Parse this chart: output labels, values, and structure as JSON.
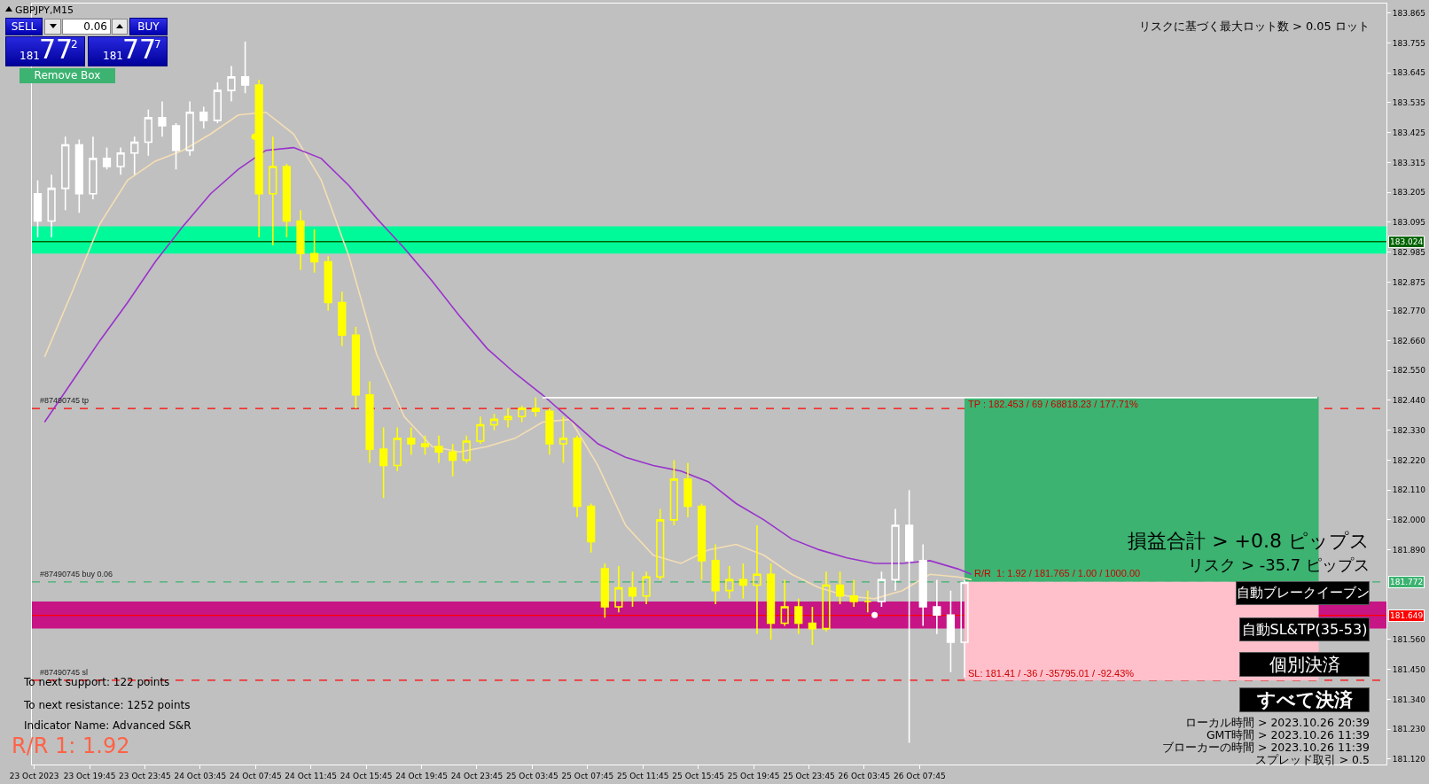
{
  "chart_data": {
    "type": "candlestick",
    "title": "GBPJPY,M15",
    "xlim": [
      "2023-10-23T15:35",
      "2023-10-27T17:30"
    ],
    "xticks": [
      {
        "value": "2023-10-23T15:45",
        "label": "23 Oct 2023"
      },
      {
        "value": "2023-10-23T19:45",
        "label": "23 Oct 19:45"
      },
      {
        "value": "2023-10-23T23:45",
        "label": "23 Oct 23:45"
      },
      {
        "value": "2023-10-24T03:45",
        "label": "24 Oct 03:45"
      },
      {
        "value": "2023-10-24T07:45",
        "label": "24 Oct 07:45"
      },
      {
        "value": "2023-10-24T11:45",
        "label": "24 Oct 11:45"
      },
      {
        "value": "2023-10-24T15:45",
        "label": "24 Oct 15:45"
      },
      {
        "value": "2023-10-24T19:45",
        "label": "24 Oct 19:45"
      },
      {
        "value": "2023-10-24T23:45",
        "label": "24 Oct 23:45"
      },
      {
        "value": "2023-10-25T03:45",
        "label": "25 Oct 03:45"
      },
      {
        "value": "2023-10-25T07:45",
        "label": "25 Oct 07:45"
      },
      {
        "value": "2023-10-25T11:45",
        "label": "25 Oct 11:45"
      },
      {
        "value": "2023-10-25T15:45",
        "label": "25 Oct 15:45"
      },
      {
        "value": "2023-10-25T19:45",
        "label": "25 Oct 19:45"
      },
      {
        "value": "2023-10-25T23:45",
        "label": "25 Oct 23:45"
      },
      {
        "value": "2023-10-26T03:45",
        "label": "26 Oct 03:45"
      },
      {
        "value": "2023-10-26T07:45",
        "label": "26 Oct 07:45"
      }
    ],
    "ylim": [
      181.1,
      183.9
    ],
    "yticks": [
      183.865,
      183.755,
      183.645,
      183.535,
      183.425,
      183.315,
      183.205,
      183.095,
      182.985,
      182.875,
      {
        "value": 182.77,
        "label": "182.770"
      },
      {
        "value": 182.66,
        "label": "182.660"
      },
      {
        "value": 182.55,
        "label": "182.550"
      },
      {
        "value": 182.44,
        "label": "182.440"
      },
      {
        "value": 182.33,
        "label": "182.330"
      },
      {
        "value": 182.22,
        "label": "182.220"
      },
      {
        "value": 182.11,
        "label": "182.110"
      },
      {
        "value": 182.0,
        "label": "182.000"
      },
      {
        "value": 181.89,
        "label": "181.890"
      },
      {
        "value": 181.56,
        "label": "181.560"
      },
      {
        "value": 181.45,
        "label": "181.450"
      },
      {
        "value": 181.34,
        "label": "181.340"
      },
      {
        "value": 181.23,
        "label": "181.230"
      },
      {
        "value": 181.12,
        "label": "181.120"
      }
    ],
    "series": [
      {
        "type": "line",
        "color": "#f5deb3",
        "x": [
          "2023-10-23T16:30",
          "2023-10-23T18:30",
          "2023-10-23T20:30",
          "2023-10-23T22:30",
          "2023-10-24T00:30",
          "2023-10-24T02:30",
          "2023-10-24T04:30",
          "2023-10-24T06:30",
          "2023-10-24T08:30",
          "2023-10-24T10:30",
          "2023-10-24T12:30",
          "2023-10-24T14:30",
          "2023-10-24T16:30",
          "2023-10-24T18:30",
          "2023-10-24T20:30",
          "2023-10-24T22:30",
          "2023-10-25T00:30",
          "2023-10-25T02:30",
          "2023-10-25T04:30",
          "2023-10-25T06:30",
          "2023-10-25T08:30",
          "2023-10-25T10:30",
          "2023-10-25T12:30",
          "2023-10-25T14:30",
          "2023-10-25T16:30",
          "2023-10-25T18:30",
          "2023-10-25T20:30",
          "2023-10-25T22:30",
          "2023-10-26T00:30",
          "2023-10-26T02:30",
          "2023-10-26T04:30",
          "2023-10-26T06:30",
          "2023-10-26T08:30",
          "2023-10-26T10:30",
          "2023-10-26T11:30"
        ],
        "values": [
          182.6,
          182.84,
          183.09,
          183.25,
          183.32,
          183.36,
          183.42,
          183.49,
          183.5,
          183.42,
          183.25,
          182.97,
          182.61,
          182.38,
          182.27,
          182.25,
          182.27,
          182.3,
          182.36,
          182.37,
          182.2,
          181.98,
          181.87,
          181.84,
          181.89,
          181.91,
          181.87,
          181.8,
          181.75,
          181.72,
          181.71,
          181.74,
          181.8,
          181.79,
          181.78
        ]
      },
      {
        "type": "line",
        "color": "#9932cc",
        "x": [
          "2023-10-23T16:30",
          "2023-10-23T18:30",
          "2023-10-23T20:30",
          "2023-10-23T22:30",
          "2023-10-24T00:30",
          "2023-10-24T02:30",
          "2023-10-24T04:30",
          "2023-10-24T06:30",
          "2023-10-24T08:30",
          "2023-10-24T10:30",
          "2023-10-24T12:30",
          "2023-10-24T14:30",
          "2023-10-24T16:30",
          "2023-10-24T18:30",
          "2023-10-24T20:30",
          "2023-10-24T22:30",
          "2023-10-25T00:30",
          "2023-10-25T02:30",
          "2023-10-25T04:30",
          "2023-10-25T06:30",
          "2023-10-25T08:30",
          "2023-10-25T10:30",
          "2023-10-25T12:30",
          "2023-10-25T14:30",
          "2023-10-25T16:30",
          "2023-10-25T18:30",
          "2023-10-25T20:30",
          "2023-10-25T22:30",
          "2023-10-26T00:30",
          "2023-10-26T02:30",
          "2023-10-26T04:30",
          "2023-10-26T06:30",
          "2023-10-26T08:30",
          "2023-10-26T10:30",
          "2023-10-26T11:30"
        ],
        "values": [
          182.36,
          182.51,
          182.66,
          182.8,
          182.95,
          183.08,
          183.2,
          183.29,
          183.36,
          183.37,
          183.33,
          183.23,
          183.11,
          183.0,
          182.88,
          182.75,
          182.63,
          182.54,
          182.46,
          182.37,
          182.28,
          182.23,
          182.2,
          182.18,
          182.14,
          182.06,
          182.0,
          181.93,
          181.89,
          181.86,
          181.84,
          181.84,
          181.85,
          181.82,
          181.8
        ]
      },
      {
        "type": "line",
        "color": "#ffffff",
        "x": [
          "2023-10-25T04:30",
          "2023-10-27T12:30"
        ],
        "values": [
          182.45,
          182.45
        ]
      },
      {
        "type": "scatter",
        "marker": "circle",
        "colors": [
          "#ffff00",
          "#ffffff"
        ],
        "x": [
          "2023-10-24T07:40",
          "2023-10-26T04:30"
        ],
        "values": [
          183.41,
          181.65
        ]
      },
      {
        "color": "#ffffff",
        "x": [
          "2023-10-23T16:00",
          "2023-10-23T17:00",
          "2023-10-23T18:00",
          "2023-10-23T19:00",
          "2023-10-23T20:00",
          "2023-10-23T21:00",
          "2023-10-23T22:00",
          "2023-10-23T23:00",
          "2023-10-24T00:00",
          "2023-10-24T01:00",
          "2023-10-24T02:00",
          "2023-10-24T03:00",
          "2023-10-24T04:00",
          "2023-10-24T05:00",
          "2023-10-24T06:00",
          "2023-10-24T07:00"
        ],
        "ohlc": [
          [
            183.2,
            183.25,
            183.04,
            183.1
          ],
          [
            183.1,
            183.27,
            183.04,
            183.22
          ],
          [
            183.22,
            183.41,
            183.14,
            183.38
          ],
          [
            183.38,
            183.4,
            183.13,
            183.2
          ],
          [
            183.2,
            183.41,
            183.18,
            183.33
          ],
          [
            183.33,
            183.37,
            183.29,
            183.3
          ],
          [
            183.3,
            183.37,
            183.27,
            183.35
          ],
          [
            183.35,
            183.41,
            183.27,
            183.39
          ],
          [
            183.39,
            183.51,
            183.34,
            183.48
          ],
          [
            183.48,
            183.54,
            183.41,
            183.45
          ],
          [
            183.45,
            183.46,
            183.29,
            183.36
          ],
          [
            183.36,
            183.54,
            183.34,
            183.5
          ],
          [
            183.5,
            183.52,
            183.44,
            183.47
          ],
          [
            183.47,
            183.61,
            183.46,
            183.58
          ],
          [
            183.58,
            183.67,
            183.54,
            183.63
          ],
          [
            183.63,
            183.76,
            183.57,
            183.6
          ]
        ]
      },
      {
        "color": "#ffff00",
        "x": [
          "2023-10-24T08:00",
          "2023-10-24T09:00",
          "2023-10-24T10:00",
          "2023-10-24T11:00",
          "2023-10-24T12:00",
          "2023-10-24T13:00",
          "2023-10-24T14:00",
          "2023-10-24T15:00",
          "2023-10-24T16:00",
          "2023-10-24T17:00",
          "2023-10-24T18:00",
          "2023-10-24T19:00",
          "2023-10-24T20:00",
          "2023-10-24T21:00",
          "2023-10-24T22:00",
          "2023-10-24T23:00",
          "2023-10-25T00:00",
          "2023-10-25T01:00",
          "2023-10-25T02:00",
          "2023-10-25T03:00",
          "2023-10-25T04:00",
          "2023-10-25T05:00",
          "2023-10-25T06:00",
          "2023-10-25T07:00",
          "2023-10-25T08:00",
          "2023-10-25T09:00",
          "2023-10-25T10:00",
          "2023-10-25T11:00",
          "2023-10-25T12:00",
          "2023-10-25T13:00",
          "2023-10-25T14:00",
          "2023-10-25T15:00",
          "2023-10-25T16:00",
          "2023-10-25T17:00",
          "2023-10-25T18:00",
          "2023-10-25T19:00",
          "2023-10-25T20:00",
          "2023-10-25T21:00",
          "2023-10-25T22:00",
          "2023-10-25T23:00",
          "2023-10-26T00:00",
          "2023-10-26T01:00",
          "2023-10-26T02:00",
          "2023-10-26T03:00",
          "2023-10-26T04:00"
        ],
        "ohlc": [
          [
            183.6,
            183.62,
            183.04,
            183.2
          ],
          [
            183.2,
            183.41,
            183.01,
            183.3
          ],
          [
            183.3,
            183.31,
            183.04,
            183.1
          ],
          [
            183.1,
            183.14,
            182.92,
            182.98
          ],
          [
            182.98,
            183.07,
            182.91,
            182.95
          ],
          [
            182.95,
            182.97,
            182.77,
            182.8
          ],
          [
            182.8,
            182.84,
            182.64,
            182.68
          ],
          [
            182.68,
            182.71,
            182.41,
            182.46
          ],
          [
            182.46,
            182.51,
            182.21,
            182.26
          ],
          [
            182.26,
            182.34,
            182.08,
            182.2
          ],
          [
            182.2,
            182.34,
            182.18,
            182.3
          ],
          [
            182.3,
            182.34,
            182.24,
            182.28
          ],
          [
            182.28,
            182.31,
            182.24,
            182.27
          ],
          [
            182.27,
            182.31,
            182.21,
            182.25
          ],
          [
            182.25,
            182.28,
            182.16,
            182.22
          ],
          [
            182.22,
            182.31,
            182.21,
            182.29
          ],
          [
            182.29,
            182.38,
            182.28,
            182.35
          ],
          [
            182.35,
            182.39,
            182.33,
            182.37
          ],
          [
            182.37,
            182.41,
            182.34,
            182.38
          ],
          [
            182.38,
            182.42,
            182.36,
            182.41
          ],
          [
            182.41,
            182.45,
            182.38,
            182.4
          ],
          [
            182.4,
            182.41,
            182.24,
            182.28
          ],
          [
            182.28,
            182.38,
            182.21,
            182.3
          ],
          [
            182.3,
            182.31,
            182.01,
            182.05
          ],
          [
            182.05,
            182.06,
            181.88,
            181.92
          ],
          [
            181.82,
            181.84,
            181.64,
            181.68
          ],
          [
            181.68,
            181.83,
            181.66,
            181.75
          ],
          [
            181.75,
            181.81,
            181.68,
            181.72
          ],
          [
            181.72,
            181.81,
            181.69,
            181.79
          ],
          [
            181.79,
            182.04,
            181.78,
            182.0
          ],
          [
            182.0,
            182.22,
            181.98,
            182.15
          ],
          [
            182.15,
            182.21,
            182.01,
            182.05
          ],
          [
            182.05,
            182.06,
            181.78,
            181.85
          ],
          [
            181.85,
            181.91,
            181.69,
            181.74
          ],
          [
            181.74,
            181.83,
            181.71,
            181.78
          ],
          [
            181.78,
            181.84,
            181.71,
            181.76
          ],
          [
            181.76,
            181.98,
            181.58,
            181.8
          ],
          [
            181.8,
            181.84,
            181.56,
            181.62
          ],
          [
            181.62,
            181.78,
            181.61,
            181.68
          ],
          [
            181.68,
            181.71,
            181.58,
            181.62
          ],
          [
            181.62,
            181.68,
            181.54,
            181.6
          ],
          [
            181.6,
            181.81,
            181.59,
            181.76
          ],
          [
            181.76,
            181.81,
            181.69,
            181.72
          ],
          [
            181.72,
            181.78,
            181.68,
            181.7
          ],
          [
            181.7,
            181.74,
            181.66,
            181.7
          ]
        ]
      },
      {
        "color": "#ffffff",
        "x": [
          "2023-10-26T05:00",
          "2023-10-26T06:00",
          "2023-10-26T07:00",
          "2023-10-26T08:00",
          "2023-10-26T09:00",
          "2023-10-26T10:00",
          "2023-10-26T11:00"
        ],
        "ohlc": [
          [
            181.7,
            181.81,
            181.68,
            181.78
          ],
          [
            181.78,
            182.04,
            181.74,
            181.98
          ],
          [
            181.98,
            182.11,
            181.18,
            181.85
          ],
          [
            181.85,
            181.91,
            181.61,
            181.68
          ],
          [
            181.68,
            181.78,
            181.58,
            181.65
          ],
          [
            181.65,
            181.74,
            181.44,
            181.55
          ],
          [
            181.55,
            181.78,
            181.42,
            181.77
          ]
        ]
      }
    ],
    "bands": [
      {
        "axis": "y",
        "from": 182.98,
        "to": 183.08,
        "color": "#00fa9a"
      },
      {
        "axis": "y",
        "from": 181.6,
        "to": 181.7,
        "color": "#c71585"
      },
      {
        "axis": "y",
        "from": 181.772,
        "to": 182.453,
        "color": "#3cb371",
        "label": "TP : 182.453 / 69 / 68818.23 / 177.71%"
      },
      {
        "axis": "y",
        "from": 181.41,
        "to": 181.772,
        "color": "#ffc0cb",
        "label": "SL: 181.41 / -36 / -35795.01 / -92.43%"
      }
    ],
    "ref_lines": [
      {
        "axis": "y",
        "value": 183.024,
        "label": "183.024",
        "color": "#006400"
      },
      {
        "axis": "y",
        "value": 181.649,
        "label": "181.649",
        "color": "#ff0000"
      },
      {
        "axis": "y",
        "value": 181.772,
        "label": "181.772",
        "color": "#3cb371",
        "line_style": "dashed"
      },
      {
        "axis": "y",
        "value": 182.41,
        "color": "#ff0000",
        "line_style": "dashed"
      },
      {
        "axis": "y",
        "value": 181.41,
        "color": "#ff0000",
        "line_style": "dashed"
      }
    ],
    "annotations": [
      "SELL",
      "0.06",
      "BUY",
      "181",
      "77",
      "2",
      "181",
      "77",
      "7",
      "Remove Box",
      "リスクに基づく最大ロット数 > 0.05 ロット",
      "損益合計 > +0.8 ピップス",
      "リスク > -35.7 ピップス",
      "自動ブレークイーブン",
      "自動SL&TP(35-53)",
      "個別決済",
      "すべて決済",
      "ローカル時間 > 2023.10.26 20:39",
      "GMT時間 > 2023.10.26 11:39",
      "ブローカーの時間 > 2023.10.26 11:39",
      "スプレッド取引 > 0.5",
      "To next support: 122 points",
      "To next resistance: 1252 points",
      "Indicator Name: Advanced S&R",
      "R/R  1: 1.92",
      {
        "text": "#87490745 tp",
        "x": "2023-10-23T16:00",
        "y": 182.41
      },
      {
        "text": "#87490745 buy 0.06",
        "x": "2023-10-23T16:00",
        "y": 181.772
      },
      {
        "text": "#87490745 sl",
        "x": "2023-10-23T16:00",
        "y": 181.41
      },
      {
        "text": "R/R  1: 1.92 / 181.765 / 1.00 / 1000.00",
        "x": "2023-10-26T11:35",
        "y": 181.772
      }
    ]
  }
}
